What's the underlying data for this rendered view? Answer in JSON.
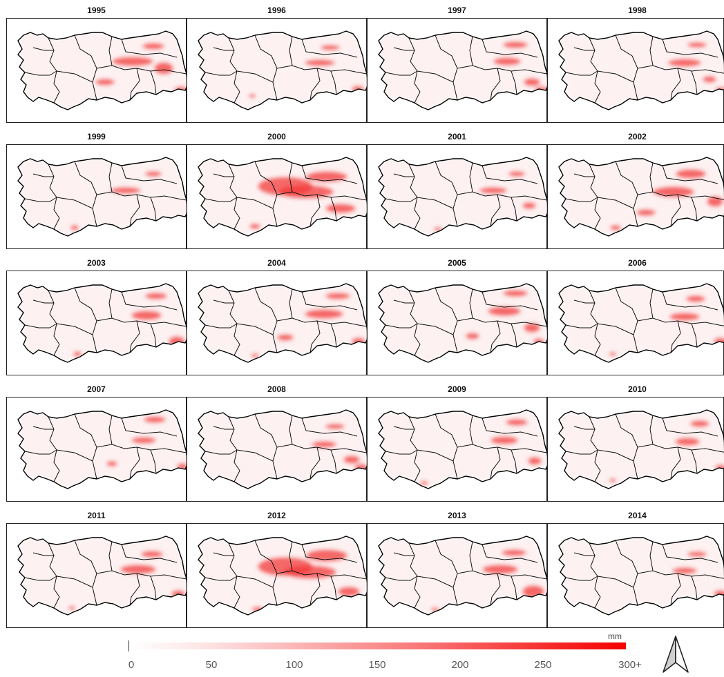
{
  "figure": {
    "panels": [
      {
        "year": "1995"
      },
      {
        "year": "1996"
      },
      {
        "year": "1997"
      },
      {
        "year": "1998"
      },
      {
        "year": "1999"
      },
      {
        "year": "2000"
      },
      {
        "year": "2001"
      },
      {
        "year": "2002"
      },
      {
        "year": "2003"
      },
      {
        "year": "2004"
      },
      {
        "year": "2005"
      },
      {
        "year": "2006"
      },
      {
        "year": "2007"
      },
      {
        "year": "2008"
      },
      {
        "year": "2009"
      },
      {
        "year": "2010"
      },
      {
        "year": "2011"
      },
      {
        "year": "2012"
      },
      {
        "year": "2013"
      },
      {
        "year": "2014"
      }
    ]
  },
  "legend": {
    "unit": "mm",
    "ticks": [
      "0",
      "50",
      "100",
      "150",
      "200",
      "250",
      "300+"
    ],
    "min": 0,
    "max": 300,
    "color_low": "#ffffff",
    "color_high": "#f50000"
  },
  "north_arrow": {
    "icon": "north-arrow-icon"
  }
}
